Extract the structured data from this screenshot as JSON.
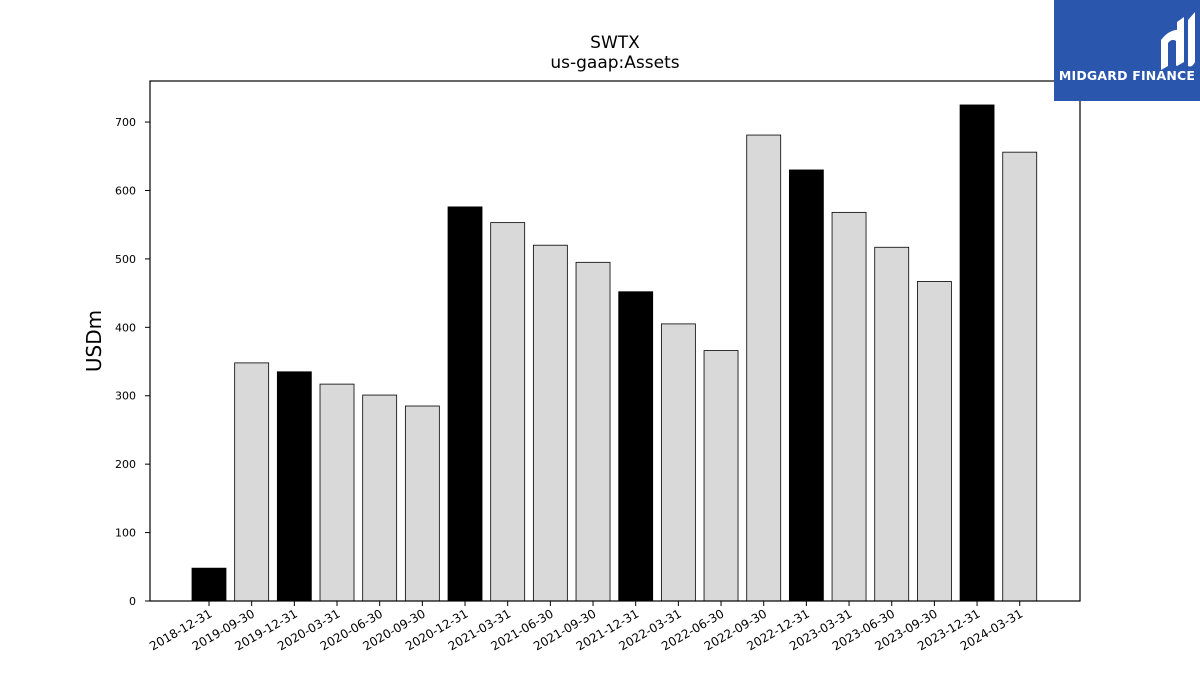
{
  "chart_data": {
    "type": "bar",
    "title": "SWTX",
    "subtitle": "us-gaap:Assets",
    "ylabel": "USDm",
    "xlabel": "",
    "ylim": [
      0,
      760
    ],
    "yticks": [
      0,
      100,
      200,
      300,
      400,
      500,
      600,
      700
    ],
    "grid": false,
    "categories": [
      "2018-12-31",
      "2019-09-30",
      "2019-12-31",
      "2020-03-31",
      "2020-06-30",
      "2020-09-30",
      "2020-12-31",
      "2021-03-31",
      "2021-06-30",
      "2021-09-30",
      "2021-12-31",
      "2022-03-31",
      "2022-06-30",
      "2022-09-30",
      "2022-12-31",
      "2023-03-31",
      "2023-06-30",
      "2023-09-30",
      "2023-12-31",
      "2024-03-31"
    ],
    "values": [
      48,
      348,
      335,
      317,
      301,
      285,
      576,
      553,
      520,
      495,
      452,
      405,
      366,
      681,
      630,
      568,
      517,
      467,
      725,
      656
    ],
    "annual": [
      true,
      false,
      true,
      false,
      false,
      false,
      true,
      false,
      false,
      false,
      true,
      false,
      false,
      false,
      true,
      false,
      false,
      false,
      true,
      false
    ],
    "colors": {
      "annual": "#000000",
      "quarter": "#d9d9d9",
      "edge": "#000000"
    }
  },
  "logo": {
    "text": "MIDGARD FINANCE",
    "background": "#2a56ad"
  }
}
